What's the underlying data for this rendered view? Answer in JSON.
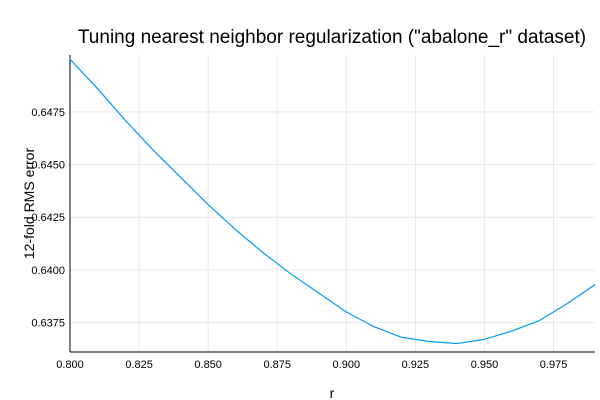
{
  "chart_data": {
    "type": "line",
    "title": "Tuning nearest neighbor regularization (\"abalone_r\" dataset)",
    "xlabel": "r",
    "ylabel": "12-fold RMS error",
    "xlim": [
      0.8,
      0.99
    ],
    "ylim": [
      0.6361,
      0.6502
    ],
    "grid": true,
    "legend": "none",
    "x_ticks": [
      0.8,
      0.825,
      0.85,
      0.875,
      0.9,
      0.925,
      0.95,
      0.975
    ],
    "x_tick_labels": [
      "0.800",
      "0.825",
      "0.850",
      "0.875",
      "0.900",
      "0.925",
      "0.950",
      "0.975"
    ],
    "y_ticks": [
      0.6375,
      0.64,
      0.6425,
      0.645,
      0.6475
    ],
    "y_tick_labels": [
      "0.6375",
      "0.6400",
      "0.6425",
      "0.6450",
      "0.6475"
    ],
    "series": [
      {
        "color": "#009af9",
        "x": [
          0.8,
          0.81,
          0.82,
          0.83,
          0.84,
          0.85,
          0.86,
          0.87,
          0.88,
          0.89,
          0.9,
          0.91,
          0.92,
          0.93,
          0.94,
          0.95,
          0.96,
          0.97,
          0.98,
          0.99
        ],
        "y": [
          0.65,
          0.6486,
          0.6471,
          0.6457,
          0.6444,
          0.6431,
          0.6419,
          0.6408,
          0.6398,
          0.6389,
          0.638,
          0.6373,
          0.6368,
          0.6366,
          0.6365,
          0.6367,
          0.6371,
          0.6376,
          0.6384,
          0.6393
        ]
      }
    ]
  }
}
